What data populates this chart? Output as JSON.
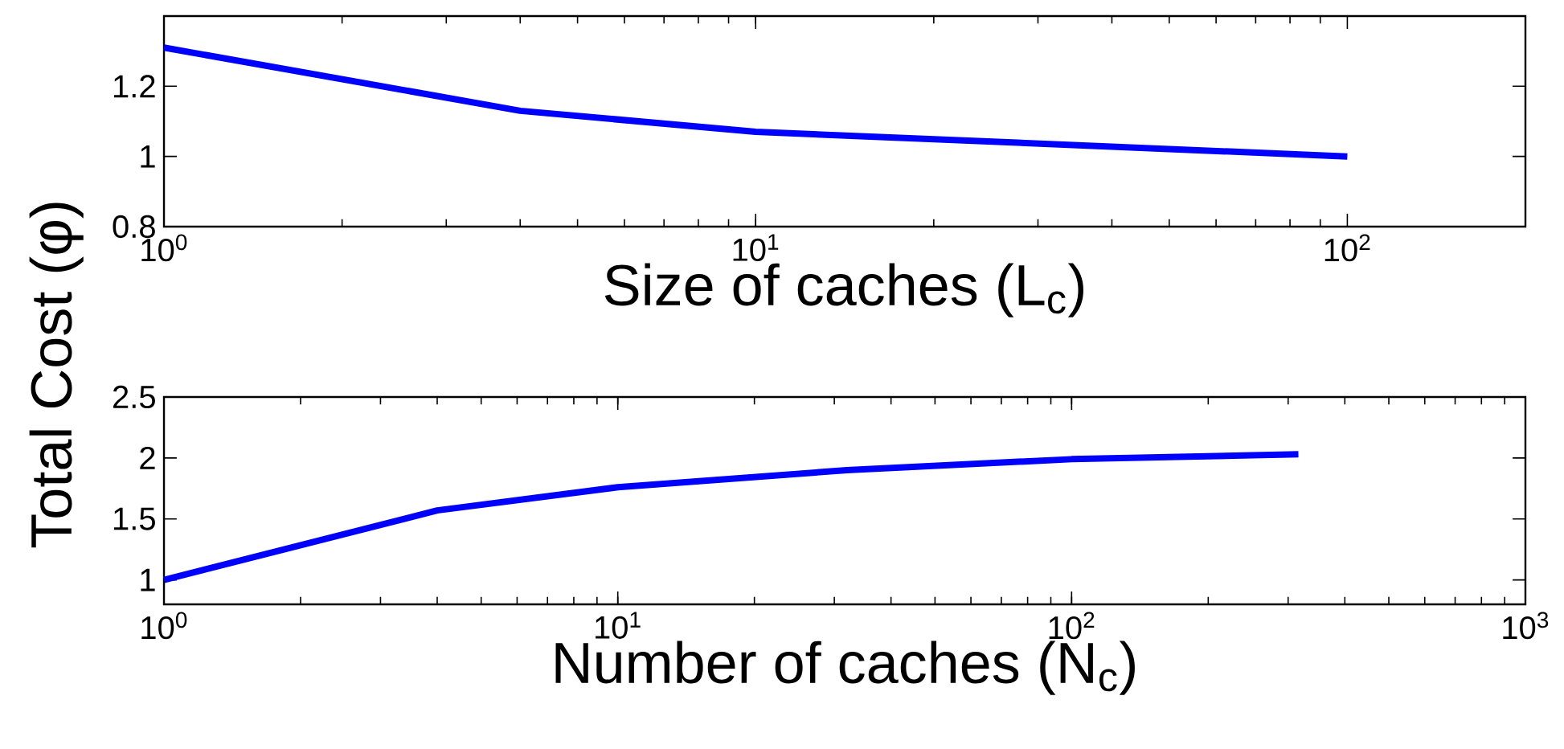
{
  "chart_data": [
    {
      "type": "line",
      "xlabel": "Size of caches (L$_{c}$)",
      "ylabel": "Total Cost (φ)",
      "log": "x",
      "color": "#0000ff",
      "x": [
        1,
        4,
        10,
        100
      ],
      "values": [
        1.31,
        1.13,
        1.07,
        1.0
      ],
      "xlim": [
        1,
        200
      ],
      "ylim": [
        0.8,
        1.4
      ],
      "xticks": [
        {
          "value": 1,
          "label": "10$^{0}$"
        },
        {
          "value": 10,
          "label": "10$^{1}$"
        },
        {
          "value": 100,
          "label": "10$^{2}$"
        }
      ],
      "yticks": [
        0.8,
        1,
        1.2
      ]
    },
    {
      "type": "line",
      "xlabel": "Number of caches (N$_{c}$)",
      "log": "x",
      "color": "#0000ff",
      "x": [
        1,
        4,
        10,
        32,
        100,
        316
      ],
      "values": [
        1.0,
        1.57,
        1.76,
        1.9,
        1.99,
        2.03
      ],
      "xlim": [
        1,
        1000
      ],
      "ylim": [
        0.8,
        2.5
      ],
      "xticks": [
        {
          "value": 1,
          "label": "10$^{0}$"
        },
        {
          "value": 10,
          "label": "10$^{1}$"
        },
        {
          "value": 100,
          "label": "10$^{2}$"
        },
        {
          "value": 1000,
          "label": "10$^{3}$"
        }
      ],
      "yticks": [
        1,
        1.5,
        2,
        2.5
      ]
    }
  ]
}
